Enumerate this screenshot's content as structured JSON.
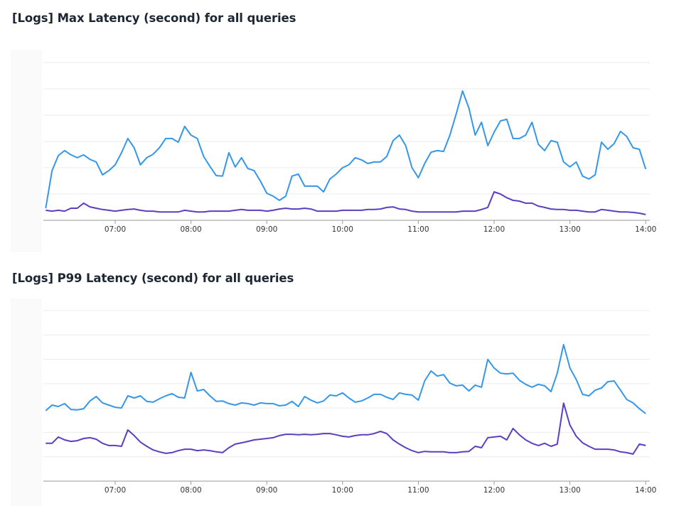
{
  "charts": [
    {
      "title": "[Logs] Max Latency (second) for all queries"
    },
    {
      "title": "[Logs] P99 Latency (second) for all queries"
    }
  ],
  "colors": {
    "series_a": "#3497ea",
    "series_b": "#5b3fc0",
    "grid": "#ebebeb",
    "axis": "#9a9a9a",
    "title": "#1d2733"
  },
  "chart_data": [
    {
      "type": "line",
      "title": "[Logs] Max Latency (second) for all queries",
      "xlabel": "",
      "ylabel": "",
      "x_ticks": [
        "07:00",
        "08:00",
        "09:00",
        "10:00",
        "11:00",
        "12:00",
        "13:00",
        "14:00"
      ],
      "x_range": [
        "06:04",
        "14:01"
      ],
      "y_axis_labels_visible": false,
      "ylim": [
        0,
        6.5
      ],
      "y_gridlines": 6,
      "grid": true,
      "legend": "none",
      "x": [
        "06:05",
        "06:10",
        "06:15",
        "06:20",
        "06:25",
        "06:30",
        "06:35",
        "06:40",
        "06:45",
        "06:50",
        "06:55",
        "07:00",
        "07:05",
        "07:10",
        "07:15",
        "07:20",
        "07:25",
        "07:30",
        "07:35",
        "07:40",
        "07:45",
        "07:50",
        "07:55",
        "08:00",
        "08:05",
        "08:10",
        "08:15",
        "08:20",
        "08:25",
        "08:30",
        "08:35",
        "08:40",
        "08:45",
        "08:50",
        "08:55",
        "09:00",
        "09:05",
        "09:10",
        "09:15",
        "09:20",
        "09:25",
        "09:30",
        "09:35",
        "09:40",
        "09:45",
        "09:50",
        "09:55",
        "10:00",
        "10:05",
        "10:10",
        "10:15",
        "10:20",
        "10:25",
        "10:30",
        "10:35",
        "10:40",
        "10:45",
        "10:50",
        "10:55",
        "11:00",
        "11:05",
        "11:10",
        "11:15",
        "11:20",
        "11:25",
        "11:30",
        "11:35",
        "11:40",
        "11:45",
        "11:50",
        "11:55",
        "12:00",
        "12:05",
        "12:10",
        "12:15",
        "12:20",
        "12:25",
        "12:30",
        "12:35",
        "12:40",
        "12:45",
        "12:50",
        "12:55",
        "13:00",
        "13:05",
        "13:10",
        "13:15",
        "13:20",
        "13:25",
        "13:30",
        "13:35",
        "13:40",
        "13:45",
        "13:50",
        "13:55",
        "14:00"
      ],
      "series": [
        {
          "color": "#3497ea",
          "values": [
            0.46,
            1.89,
            2.46,
            2.65,
            2.49,
            2.38,
            2.49,
            2.32,
            2.22,
            1.73,
            1.89,
            2.11,
            2.57,
            3.11,
            2.76,
            2.11,
            2.38,
            2.51,
            2.76,
            3.11,
            3.11,
            2.97,
            3.57,
            3.24,
            3.11,
            2.43,
            2.05,
            1.7,
            1.68,
            2.57,
            2.03,
            2.38,
            1.97,
            1.89,
            1.49,
            1.03,
            0.92,
            0.76,
            0.92,
            1.68,
            1.76,
            1.3,
            1.3,
            1.3,
            1.08,
            1.57,
            1.76,
            2.0,
            2.11,
            2.38,
            2.3,
            2.16,
            2.22,
            2.22,
            2.43,
            3.03,
            3.24,
            2.84,
            2.0,
            1.62,
            2.16,
            2.59,
            2.65,
            2.62,
            3.24,
            4.05,
            4.92,
            4.27,
            3.24,
            3.73,
            2.84,
            3.35,
            3.78,
            3.84,
            3.11,
            3.11,
            3.24,
            3.73,
            2.89,
            2.65,
            3.03,
            2.97,
            2.22,
            2.03,
            2.22,
            1.68,
            1.57,
            1.73,
            2.97,
            2.7,
            2.92,
            3.38,
            3.19,
            2.76,
            2.7,
            1.95
          ]
        },
        {
          "color": "#5b3fc0",
          "values": [
            0.38,
            0.35,
            0.38,
            0.35,
            0.46,
            0.46,
            0.65,
            0.51,
            0.46,
            0.41,
            0.38,
            0.35,
            0.38,
            0.41,
            0.43,
            0.38,
            0.35,
            0.35,
            0.32,
            0.32,
            0.32,
            0.32,
            0.38,
            0.35,
            0.32,
            0.32,
            0.35,
            0.35,
            0.35,
            0.35,
            0.38,
            0.41,
            0.38,
            0.38,
            0.38,
            0.35,
            0.38,
            0.43,
            0.46,
            0.43,
            0.43,
            0.46,
            0.43,
            0.35,
            0.35,
            0.35,
            0.35,
            0.38,
            0.38,
            0.38,
            0.38,
            0.41,
            0.41,
            0.43,
            0.49,
            0.51,
            0.43,
            0.41,
            0.35,
            0.32,
            0.32,
            0.32,
            0.32,
            0.32,
            0.32,
            0.32,
            0.35,
            0.35,
            0.35,
            0.41,
            0.49,
            1.08,
            1.0,
            0.86,
            0.76,
            0.73,
            0.65,
            0.65,
            0.54,
            0.49,
            0.43,
            0.41,
            0.41,
            0.38,
            0.38,
            0.35,
            0.32,
            0.32,
            0.41,
            0.38,
            0.35,
            0.32,
            0.32,
            0.3,
            0.27,
            0.22
          ]
        }
      ]
    },
    {
      "type": "line",
      "title": "[Logs] P99 Latency (second) for all queries",
      "xlabel": "",
      "ylabel": "",
      "x_ticks": [
        "07:00",
        "08:00",
        "09:00",
        "10:00",
        "11:00",
        "12:00",
        "13:00",
        "14:00"
      ],
      "x_range": [
        "06:04",
        "14:01"
      ],
      "y_axis_labels_visible": false,
      "ylim": [
        0,
        7.5
      ],
      "y_gridlines": 7,
      "grid": true,
      "legend": "none",
      "x": [
        "06:05",
        "06:10",
        "06:15",
        "06:20",
        "06:25",
        "06:30",
        "06:35",
        "06:40",
        "06:45",
        "06:50",
        "06:55",
        "07:00",
        "07:05",
        "07:10",
        "07:15",
        "07:20",
        "07:25",
        "07:30",
        "07:35",
        "07:40",
        "07:45",
        "07:50",
        "07:55",
        "08:00",
        "08:05",
        "08:10",
        "08:15",
        "08:20",
        "08:25",
        "08:30",
        "08:35",
        "08:40",
        "08:45",
        "08:50",
        "08:55",
        "09:00",
        "09:05",
        "09:10",
        "09:15",
        "09:20",
        "09:25",
        "09:30",
        "09:35",
        "09:40",
        "09:45",
        "09:50",
        "09:55",
        "10:00",
        "10:05",
        "10:10",
        "10:15",
        "10:20",
        "10:25",
        "10:30",
        "10:35",
        "10:40",
        "10:45",
        "10:50",
        "10:55",
        "11:00",
        "11:05",
        "11:10",
        "11:15",
        "11:20",
        "11:25",
        "11:30",
        "11:35",
        "11:40",
        "11:45",
        "11:50",
        "11:55",
        "12:00",
        "12:05",
        "12:10",
        "12:15",
        "12:20",
        "12:25",
        "12:30",
        "12:35",
        "12:40",
        "12:45",
        "12:50",
        "12:55",
        "13:00",
        "13:05",
        "13:10",
        "13:15",
        "13:20",
        "13:25",
        "13:30",
        "13:35",
        "13:40",
        "13:45",
        "13:50",
        "13:55",
        "14:00"
      ],
      "series": [
        {
          "color": "#3497ea",
          "values": [
            2.89,
            3.12,
            3.06,
            3.18,
            2.94,
            2.92,
            2.97,
            3.29,
            3.47,
            3.21,
            3.12,
            3.03,
            3.0,
            3.5,
            3.41,
            3.5,
            3.27,
            3.24,
            3.38,
            3.5,
            3.59,
            3.44,
            3.41,
            4.46,
            3.7,
            3.76,
            3.5,
            3.27,
            3.29,
            3.18,
            3.12,
            3.21,
            3.18,
            3.12,
            3.21,
            3.18,
            3.18,
            3.09,
            3.12,
            3.27,
            3.06,
            3.47,
            3.32,
            3.21,
            3.29,
            3.53,
            3.5,
            3.62,
            3.41,
            3.24,
            3.29,
            3.41,
            3.56,
            3.56,
            3.44,
            3.35,
            3.62,
            3.56,
            3.53,
            3.32,
            4.11,
            4.52,
            4.31,
            4.37,
            4.02,
            3.91,
            3.94,
            3.7,
            3.94,
            3.85,
            4.99,
            4.64,
            4.43,
            4.4,
            4.43,
            4.14,
            3.97,
            3.85,
            3.97,
            3.91,
            3.67,
            4.43,
            5.6,
            4.64,
            4.17,
            3.56,
            3.5,
            3.73,
            3.82,
            4.08,
            4.11,
            3.73,
            3.35,
            3.21,
            2.97,
            2.77
          ]
        },
        {
          "color": "#5b3fc0",
          "values": [
            1.55,
            1.55,
            1.81,
            1.69,
            1.63,
            1.66,
            1.75,
            1.78,
            1.72,
            1.55,
            1.46,
            1.46,
            1.43,
            2.1,
            1.87,
            1.6,
            1.43,
            1.28,
            1.2,
            1.14,
            1.17,
            1.25,
            1.31,
            1.31,
            1.25,
            1.28,
            1.25,
            1.2,
            1.17,
            1.37,
            1.52,
            1.57,
            1.63,
            1.69,
            1.72,
            1.75,
            1.78,
            1.87,
            1.92,
            1.92,
            1.9,
            1.92,
            1.9,
            1.92,
            1.95,
            1.95,
            1.9,
            1.84,
            1.81,
            1.87,
            1.9,
            1.9,
            1.95,
            2.04,
            1.95,
            1.69,
            1.52,
            1.37,
            1.25,
            1.17,
            1.22,
            1.2,
            1.2,
            1.2,
            1.17,
            1.17,
            1.2,
            1.22,
            1.43,
            1.37,
            1.78,
            1.81,
            1.84,
            1.69,
            2.16,
            1.9,
            1.69,
            1.55,
            1.46,
            1.55,
            1.43,
            1.52,
            3.2,
            2.3,
            1.84,
            1.57,
            1.43,
            1.31,
            1.31,
            1.31,
            1.28,
            1.2,
            1.17,
            1.11,
            1.52,
            1.46
          ]
        }
      ]
    }
  ]
}
